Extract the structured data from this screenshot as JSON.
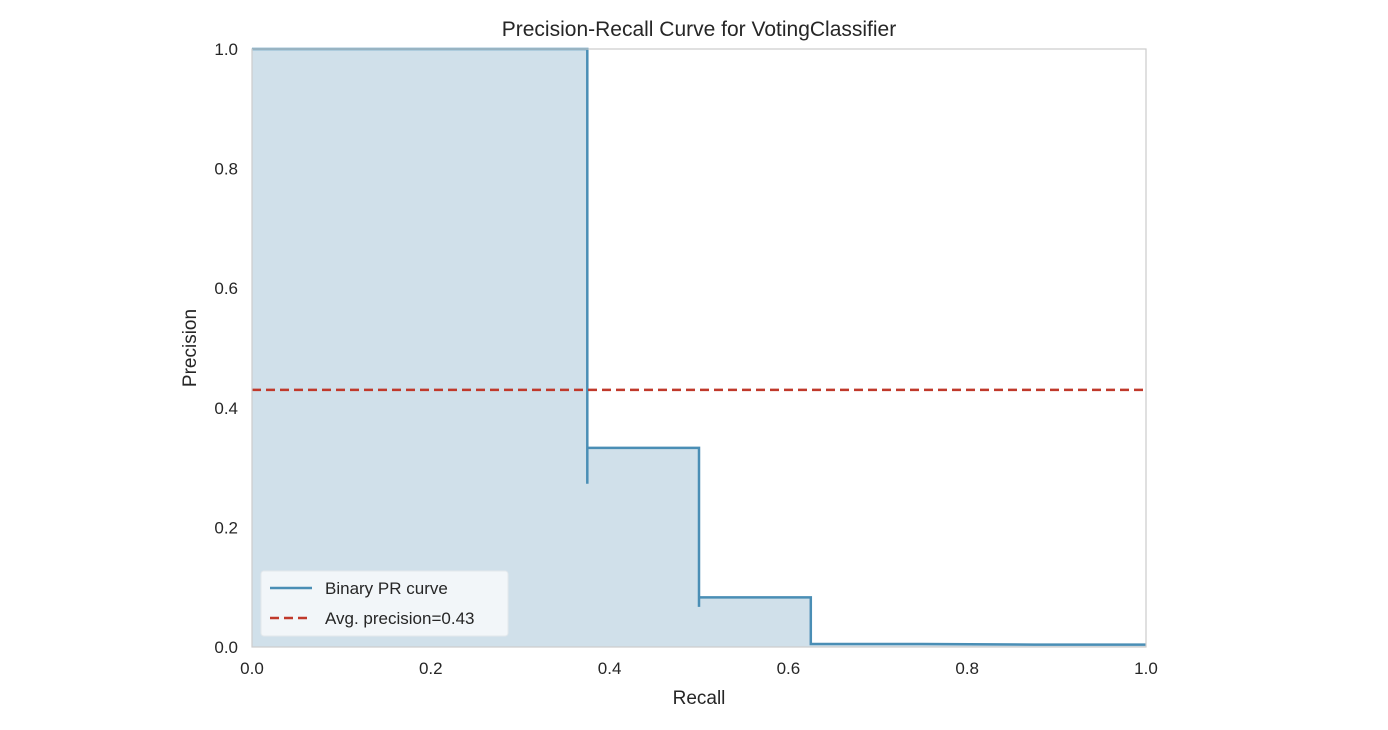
{
  "chart_data": {
    "type": "line",
    "title": "Precision-Recall Curve for VotingClassifier",
    "xlabel": "Recall",
    "ylabel": "Precision",
    "xlim": [
      0.0,
      1.0
    ],
    "ylim": [
      0.0,
      1.0
    ],
    "x_ticks": [
      "0.0",
      "0.2",
      "0.4",
      "0.6",
      "0.8",
      "1.0"
    ],
    "y_ticks": [
      "0.0",
      "0.2",
      "0.4",
      "0.6",
      "0.8",
      "1.0"
    ],
    "x_tick_values": [
      0.0,
      0.2,
      0.4,
      0.6,
      0.8,
      1.0
    ],
    "y_tick_values": [
      0.0,
      0.2,
      0.4,
      0.6,
      0.8,
      1.0
    ],
    "grid": false,
    "legend_position": "lower-left",
    "series": [
      {
        "name": "Binary PR curve",
        "style": "step",
        "color": "#4a8eb5",
        "fill": true,
        "fill_color": "#d0e0ea",
        "x": [
          0.0,
          0.375,
          0.375,
          0.375,
          0.5,
          0.5,
          0.5,
          0.625,
          0.625,
          0.75,
          0.875,
          1.0
        ],
        "y": [
          1.0,
          1.0,
          0.273,
          0.333,
          0.333,
          0.067,
          0.083,
          0.083,
          0.005,
          0.005,
          0.004,
          0.004
        ]
      },
      {
        "name": "Avg. precision=0.43",
        "style": "dashed",
        "color": "#c0392b",
        "value": 0.43
      }
    ],
    "colors": {
      "axes_edge": "#cccccc",
      "text": "#262626",
      "background": "#ffffff"
    }
  }
}
